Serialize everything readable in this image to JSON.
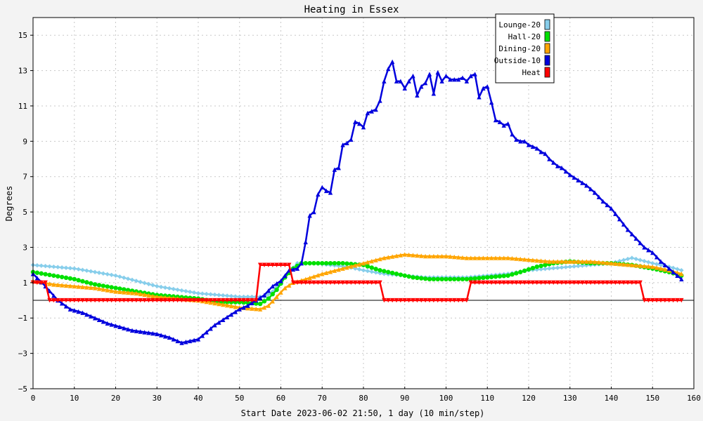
{
  "chart_data": {
    "type": "line",
    "title": "Heating in Essex",
    "xlabel": "Start Date 2023-06-02 21:50, 1 day (10 min/step)",
    "ylabel": "Degrees",
    "xlim": [
      0,
      160
    ],
    "ylim": [
      -5,
      16
    ],
    "x_ticks": [
      0,
      10,
      20,
      30,
      40,
      50,
      60,
      70,
      80,
      90,
      100,
      110,
      120,
      130,
      140,
      150,
      160
    ],
    "y_ticks": [
      -5,
      -3,
      -1,
      1,
      3,
      5,
      7,
      9,
      11,
      13,
      15
    ],
    "grid": true,
    "legend_position": "top-right",
    "series": [
      {
        "name": "Lounge-20",
        "color": "#87ceeb",
        "marker": "diamond",
        "points": [
          [
            0,
            2.0
          ],
          [
            5,
            1.9
          ],
          [
            10,
            1.8
          ],
          [
            15,
            1.6
          ],
          [
            20,
            1.4
          ],
          [
            25,
            1.1
          ],
          [
            30,
            0.8
          ],
          [
            35,
            0.6
          ],
          [
            40,
            0.4
          ],
          [
            45,
            0.3
          ],
          [
            50,
            0.2
          ],
          [
            54,
            0.2
          ],
          [
            56,
            0.2
          ],
          [
            58,
            0.5
          ],
          [
            60,
            1.0
          ],
          [
            62,
            1.6
          ],
          [
            64,
            2.1
          ],
          [
            68,
            2.1
          ],
          [
            72,
            2.0
          ],
          [
            76,
            1.9
          ],
          [
            80,
            1.7
          ],
          [
            85,
            1.5
          ],
          [
            90,
            1.4
          ],
          [
            95,
            1.3
          ],
          [
            100,
            1.3
          ],
          [
            105,
            1.3
          ],
          [
            110,
            1.4
          ],
          [
            115,
            1.5
          ],
          [
            120,
            1.7
          ],
          [
            125,
            1.8
          ],
          [
            130,
            1.9
          ],
          [
            135,
            2.0
          ],
          [
            140,
            2.1
          ],
          [
            145,
            2.4
          ],
          [
            150,
            2.1
          ],
          [
            154,
            1.9
          ],
          [
            157,
            1.7
          ]
        ]
      },
      {
        "name": "Hall-20",
        "color": "#00e000",
        "marker": "circle",
        "points": [
          [
            0,
            1.6
          ],
          [
            5,
            1.4
          ],
          [
            10,
            1.2
          ],
          [
            15,
            0.9
          ],
          [
            20,
            0.7
          ],
          [
            25,
            0.5
          ],
          [
            30,
            0.3
          ],
          [
            35,
            0.2
          ],
          [
            40,
            0.1
          ],
          [
            45,
            -0.1
          ],
          [
            50,
            -0.1
          ],
          [
            55,
            -0.2
          ],
          [
            57,
            0.1
          ],
          [
            59,
            0.6
          ],
          [
            61,
            1.3
          ],
          [
            63,
            1.8
          ],
          [
            65,
            2.1
          ],
          [
            70,
            2.1
          ],
          [
            75,
            2.1
          ],
          [
            80,
            2.0
          ],
          [
            84,
            1.7
          ],
          [
            88,
            1.5
          ],
          [
            92,
            1.3
          ],
          [
            96,
            1.2
          ],
          [
            100,
            1.2
          ],
          [
            105,
            1.2
          ],
          [
            110,
            1.3
          ],
          [
            115,
            1.4
          ],
          [
            118,
            1.6
          ],
          [
            122,
            1.9
          ],
          [
            126,
            2.1
          ],
          [
            130,
            2.2
          ],
          [
            135,
            2.1
          ],
          [
            140,
            2.1
          ],
          [
            145,
            2.0
          ],
          [
            150,
            1.8
          ],
          [
            154,
            1.6
          ],
          [
            157,
            1.4
          ]
        ]
      },
      {
        "name": "Dining-20",
        "color": "#ffa500",
        "marker": "triangle",
        "points": [
          [
            0,
            1.1
          ],
          [
            5,
            0.9
          ],
          [
            10,
            0.8
          ],
          [
            15,
            0.7
          ],
          [
            20,
            0.5
          ],
          [
            25,
            0.4
          ],
          [
            30,
            0.2
          ],
          [
            35,
            0.1
          ],
          [
            40,
            0.0
          ],
          [
            45,
            -0.2
          ],
          [
            50,
            -0.4
          ],
          [
            55,
            -0.5
          ],
          [
            57,
            -0.3
          ],
          [
            59,
            0.2
          ],
          [
            61,
            0.7
          ],
          [
            63,
            1.0
          ],
          [
            66,
            1.2
          ],
          [
            70,
            1.5
          ],
          [
            75,
            1.8
          ],
          [
            80,
            2.1
          ],
          [
            85,
            2.4
          ],
          [
            90,
            2.6
          ],
          [
            95,
            2.5
          ],
          [
            100,
            2.5
          ],
          [
            105,
            2.4
          ],
          [
            110,
            2.4
          ],
          [
            115,
            2.4
          ],
          [
            120,
            2.3
          ],
          [
            125,
            2.2
          ],
          [
            130,
            2.2
          ],
          [
            135,
            2.2
          ],
          [
            140,
            2.1
          ],
          [
            145,
            2.0
          ],
          [
            150,
            1.9
          ],
          [
            154,
            1.7
          ],
          [
            157,
            1.5
          ]
        ]
      },
      {
        "name": "Outside-10",
        "color": "#0000dd",
        "marker": "triangle",
        "points": [
          [
            0,
            1.5
          ],
          [
            3,
            0.8
          ],
          [
            6,
            0.0
          ],
          [
            9,
            -0.5
          ],
          [
            12,
            -0.7
          ],
          [
            15,
            -1.0
          ],
          [
            18,
            -1.3
          ],
          [
            21,
            -1.5
          ],
          [
            24,
            -1.7
          ],
          [
            27,
            -1.8
          ],
          [
            30,
            -1.9
          ],
          [
            33,
            -2.1
          ],
          [
            36,
            -2.4
          ],
          [
            38,
            -2.3
          ],
          [
            40,
            -2.2
          ],
          [
            42,
            -1.8
          ],
          [
            44,
            -1.4
          ],
          [
            46,
            -1.1
          ],
          [
            48,
            -0.8
          ],
          [
            50,
            -0.5
          ],
          [
            52,
            -0.3
          ],
          [
            54,
            0.0
          ],
          [
            56,
            0.3
          ],
          [
            58,
            0.8
          ],
          [
            60,
            1.1
          ],
          [
            62,
            1.7
          ],
          [
            64,
            1.8
          ],
          [
            65,
            2.1
          ],
          [
            66,
            3.3
          ],
          [
            67,
            4.8
          ],
          [
            68,
            5.0
          ],
          [
            69,
            6.0
          ],
          [
            70,
            6.4
          ],
          [
            71,
            6.2
          ],
          [
            72,
            6.1
          ],
          [
            73,
            7.4
          ],
          [
            74,
            7.5
          ],
          [
            75,
            8.8
          ],
          [
            76,
            8.9
          ],
          [
            77,
            9.1
          ],
          [
            78,
            10.1
          ],
          [
            79,
            10.0
          ],
          [
            80,
            9.8
          ],
          [
            81,
            10.6
          ],
          [
            82,
            10.7
          ],
          [
            83,
            10.8
          ],
          [
            84,
            11.3
          ],
          [
            85,
            12.4
          ],
          [
            86,
            13.1
          ],
          [
            87,
            13.5
          ],
          [
            88,
            12.4
          ],
          [
            89,
            12.4
          ],
          [
            90,
            12.0
          ],
          [
            91,
            12.4
          ],
          [
            92,
            12.7
          ],
          [
            93,
            11.6
          ],
          [
            94,
            12.1
          ],
          [
            95,
            12.3
          ],
          [
            96,
            12.8
          ],
          [
            97,
            11.7
          ],
          [
            98,
            12.9
          ],
          [
            99,
            12.4
          ],
          [
            100,
            12.7
          ],
          [
            101,
            12.5
          ],
          [
            102,
            12.5
          ],
          [
            103,
            12.5
          ],
          [
            104,
            12.6
          ],
          [
            105,
            12.4
          ],
          [
            106,
            12.7
          ],
          [
            107,
            12.8
          ],
          [
            108,
            11.5
          ],
          [
            109,
            12.0
          ],
          [
            110,
            12.1
          ],
          [
            111,
            11.2
          ],
          [
            112,
            10.2
          ],
          [
            113,
            10.1
          ],
          [
            114,
            9.9
          ],
          [
            115,
            10.0
          ],
          [
            116,
            9.4
          ],
          [
            117,
            9.1
          ],
          [
            118,
            9.0
          ],
          [
            119,
            9.0
          ],
          [
            120,
            8.8
          ],
          [
            121,
            8.7
          ],
          [
            122,
            8.6
          ],
          [
            123,
            8.4
          ],
          [
            124,
            8.3
          ],
          [
            125,
            8.0
          ],
          [
            126,
            7.8
          ],
          [
            127,
            7.6
          ],
          [
            128,
            7.5
          ],
          [
            129,
            7.3
          ],
          [
            130,
            7.1
          ],
          [
            132,
            6.8
          ],
          [
            134,
            6.5
          ],
          [
            136,
            6.1
          ],
          [
            138,
            5.6
          ],
          [
            140,
            5.2
          ],
          [
            142,
            4.6
          ],
          [
            144,
            4.0
          ],
          [
            146,
            3.5
          ],
          [
            148,
            3.0
          ],
          [
            150,
            2.7
          ],
          [
            152,
            2.2
          ],
          [
            154,
            1.8
          ],
          [
            156,
            1.4
          ],
          [
            157,
            1.2
          ]
        ]
      },
      {
        "name": "Heat",
        "color": "#ff0000",
        "marker": "triangle-down",
        "points": [
          [
            0,
            1.0
          ],
          [
            3,
            1.0
          ],
          [
            4,
            0.0
          ],
          [
            54,
            0.0
          ],
          [
            55,
            2.0
          ],
          [
            62,
            2.0
          ],
          [
            63,
            1.0
          ],
          [
            84,
            1.0
          ],
          [
            85,
            0.0
          ],
          [
            105,
            0.0
          ],
          [
            106,
            1.0
          ],
          [
            147,
            1.0
          ],
          [
            148,
            0.0
          ],
          [
            157,
            0.0
          ]
        ]
      }
    ]
  }
}
